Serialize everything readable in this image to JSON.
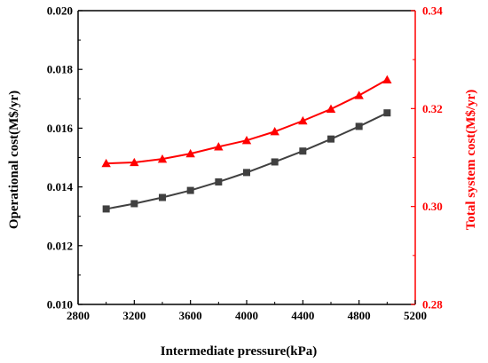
{
  "chart_data": {
    "type": "line",
    "title": "",
    "xlabel": "Intermediate pressure(kPa)",
    "ylabel_left": "Operational cost(M$/yr)",
    "ylabel_right": "Total system cost(M$/yr)",
    "xlim": [
      2800,
      5200
    ],
    "ylim_left": [
      0.01,
      0.02
    ],
    "ylim_right": [
      0.28,
      0.34
    ],
    "x_ticks": [
      "2800",
      "3200",
      "3600",
      "4000",
      "4400",
      "4800",
      "5200"
    ],
    "y_left_ticks": [
      "0.010",
      "0.012",
      "0.014",
      "0.016",
      "0.018",
      "0.020"
    ],
    "y_right_ticks": [
      "0.28",
      "0.30",
      "0.32",
      "0.34"
    ],
    "grid": false,
    "x": [
      3000,
      3200,
      3400,
      3600,
      3800,
      4000,
      4200,
      4400,
      4600,
      4800,
      5000
    ],
    "series": [
      {
        "axis": "left",
        "color": "#404040",
        "marker": "square",
        "values": [
          0.01325,
          0.01343,
          0.01364,
          0.01388,
          0.01417,
          0.01449,
          0.01485,
          0.01522,
          0.01563,
          0.01606,
          0.01652
        ]
      },
      {
        "axis": "right",
        "color": "#ff0000",
        "marker": "triangle",
        "values": [
          0.3088,
          0.309,
          0.3097,
          0.3108,
          0.3122,
          0.3135,
          0.3153,
          0.3175,
          0.3199,
          0.3227,
          0.3259
        ]
      }
    ]
  },
  "colors": {
    "left_axis": "#000000",
    "right_axis": "#ff0000"
  }
}
